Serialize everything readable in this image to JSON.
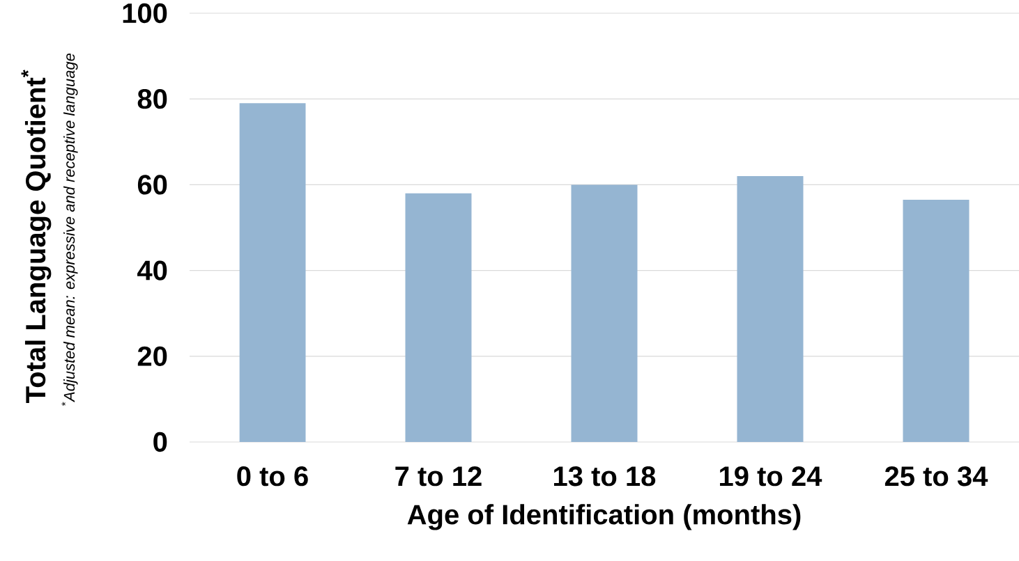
{
  "chart_data": {
    "type": "bar",
    "xlabel": "Age of Identification (months)",
    "ylabel": "Total Language Quotient$^{*}$",
    "annotations": [
      "$^{*}$Adjusted mean: expressive and receptive language"
    ],
    "categories": [
      "0 to 6",
      "7 to 12",
      "13 to 18",
      "19 to 24",
      "25 to 34"
    ],
    "values": [
      79,
      58,
      60,
      62,
      56.5
    ],
    "color": "#95b5d2",
    "ylim": [
      0,
      100
    ],
    "yticks": [
      0,
      20,
      40,
      60,
      80,
      100
    ],
    "grid": "y"
  }
}
